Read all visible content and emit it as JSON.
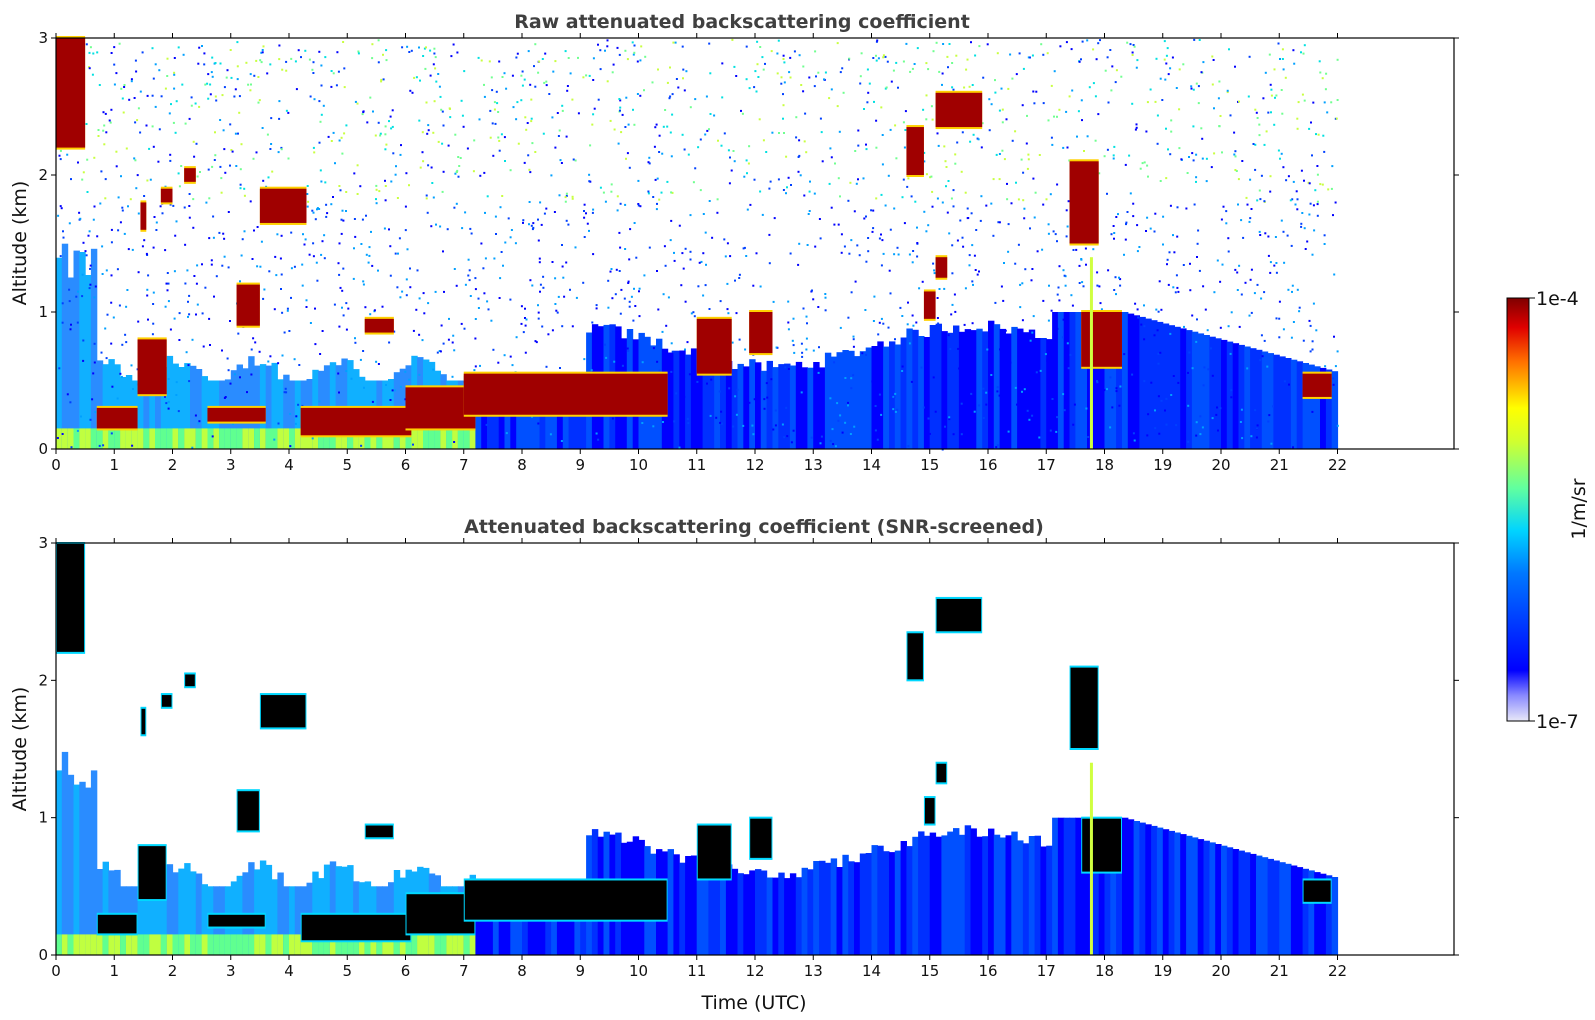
{
  "chart_data": [
    {
      "type": "heatmap",
      "title": "Raw attenuated backscattering coefficient",
      "xlabel": "",
      "ylabel": "Altitude (km)",
      "xlim": [
        0,
        24
      ],
      "ylim": [
        0,
        3
      ],
      "x_ticks": [
        "0",
        "1",
        "2",
        "3",
        "4",
        "5",
        "6",
        "7",
        "8",
        "9",
        "10",
        "11",
        "12",
        "13",
        "14",
        "15",
        "16",
        "17",
        "18",
        "19",
        "20",
        "21",
        "22"
      ],
      "y_ticks": [
        "0",
        "1",
        "2",
        "3"
      ],
      "data_x_range": [
        0,
        22
      ],
      "background_noise": "scattered blue/cyan noise pixels throughout 0-3 km, denser at low altitude",
      "features": [
        {
          "kind": "boundary_layer",
          "t": [
            0,
            7.1
          ],
          "z_top_km": 0.5,
          "note": "cyan/green aerosol layer near surface"
        },
        {
          "kind": "boundary_layer",
          "t": [
            7.1,
            22
          ],
          "z_top_km_start": 0.5,
          "z_top_km_max": 1.0,
          "z_top_km_end": 0.55
        },
        {
          "kind": "cloud",
          "t": [
            0.0,
            0.5
          ],
          "z_km": [
            2.2,
            3.0
          ]
        },
        {
          "kind": "cloud",
          "t": [
            0.7,
            1.4
          ],
          "z_km": [
            0.15,
            0.3
          ]
        },
        {
          "kind": "cloud",
          "t": [
            1.4,
            1.9
          ],
          "z_km": [
            0.4,
            0.8
          ]
        },
        {
          "kind": "cloud",
          "t": [
            1.45,
            1.55
          ],
          "z_km": [
            1.6,
            1.8
          ]
        },
        {
          "kind": "cloud",
          "t": [
            1.8,
            2.0
          ],
          "z_km": [
            1.8,
            1.9
          ]
        },
        {
          "kind": "cloud",
          "t": [
            2.2,
            2.4
          ],
          "z_km": [
            1.95,
            2.05
          ]
        },
        {
          "kind": "cloud",
          "t": [
            2.6,
            3.6
          ],
          "z_km": [
            0.2,
            0.3
          ]
        },
        {
          "kind": "cloud",
          "t": [
            3.1,
            3.5
          ],
          "z_km": [
            0.9,
            1.2
          ]
        },
        {
          "kind": "cloud",
          "t": [
            3.5,
            4.3
          ],
          "z_km": [
            1.65,
            1.9
          ]
        },
        {
          "kind": "cloud",
          "t": [
            4.2,
            6.1
          ],
          "z_km": [
            0.1,
            0.3
          ]
        },
        {
          "kind": "cloud",
          "t": [
            5.3,
            5.8
          ],
          "z_km": [
            0.85,
            0.95
          ]
        },
        {
          "kind": "cloud",
          "t": [
            6.0,
            7.2
          ],
          "z_km": [
            0.15,
            0.45
          ]
        },
        {
          "kind": "cloud",
          "t": [
            7.0,
            10.5
          ],
          "z_km": [
            0.25,
            0.55
          ]
        },
        {
          "kind": "cloud",
          "t": [
            11.0,
            11.6
          ],
          "z_km": [
            0.55,
            0.95
          ]
        },
        {
          "kind": "cloud",
          "t": [
            11.9,
            12.3
          ],
          "z_km": [
            0.7,
            1.0
          ]
        },
        {
          "kind": "cloud",
          "t": [
            14.6,
            14.9
          ],
          "z_km": [
            2.0,
            2.35
          ]
        },
        {
          "kind": "cloud",
          "t": [
            15.1,
            15.9
          ],
          "z_km": [
            2.35,
            2.6
          ]
        },
        {
          "kind": "cloud",
          "t": [
            14.9,
            15.1
          ],
          "z_km": [
            0.95,
            1.15
          ]
        },
        {
          "kind": "cloud",
          "t": [
            15.1,
            15.3
          ],
          "z_km": [
            1.25,
            1.4
          ]
        },
        {
          "kind": "cloud",
          "t": [
            17.4,
            17.9
          ],
          "z_km": [
            1.5,
            2.1
          ]
        },
        {
          "kind": "cloud",
          "t": [
            17.6,
            18.3
          ],
          "z_km": [
            0.6,
            1.0
          ]
        },
        {
          "kind": "cloud",
          "t": [
            21.4,
            21.9
          ],
          "z_km": [
            0.38,
            0.55
          ]
        }
      ]
    },
    {
      "type": "heatmap",
      "title": "Attenuated backscattering coefficient (SNR-screened)",
      "xlabel": "Time (UTC)",
      "ylabel": "Altitude (km)",
      "xlim": [
        0,
        24
      ],
      "ylim": [
        0,
        3
      ],
      "x_ticks": [
        "0",
        "1",
        "2",
        "3",
        "4",
        "5",
        "6",
        "7",
        "8",
        "9",
        "10",
        "11",
        "12",
        "13",
        "14",
        "15",
        "16",
        "17",
        "18",
        "19",
        "20",
        "21",
        "22"
      ],
      "y_ticks": [
        "0",
        "1",
        "2",
        "3"
      ],
      "data_x_range": [
        0,
        22
      ],
      "background_noise": "removed (white)",
      "cloud_color": "#000000"
    }
  ],
  "colorbar": {
    "label": "1/m/sr",
    "max_label": "1e-4",
    "min_label": "1e-7",
    "colors": [
      "#e0e0f6",
      "#0000ff",
      "#00c8ff",
      "#7fff7f",
      "#ffff00",
      "#ff6a00",
      "#7f0000"
    ]
  }
}
